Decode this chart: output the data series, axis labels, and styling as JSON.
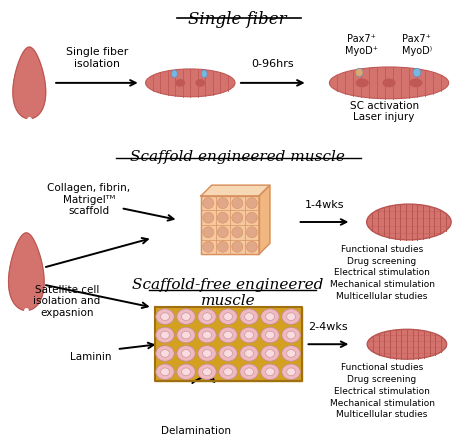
{
  "bg": "#ffffff",
  "muscle_red": "#d4726e",
  "muscle_dark_red": "#b85550",
  "fiber_stripe": "#c05855",
  "scaffold_face": "#f5c8a0",
  "scaffold_top": "#f7d8b5",
  "scaffold_side": "#f0b880",
  "scaffold_border": "#d89060",
  "scaffold_cell": "#e0a888",
  "scaffold_free_bg": "#d4a020",
  "scaffold_free_cell": "#f0b8c0",
  "scaffold_free_inner": "#f8dce0",
  "bump_blue": "#78b8e0",
  "bump_orange": "#e0a870",
  "nucleus": "#c05855",
  "title1": "Single fiber",
  "title2": "Scaffold engineered muscle",
  "title3": "Scaffold-free engineered\nmuscle",
  "t_single_fiber_iso": "Single fiber\nisolation",
  "t_096": "0-96hrs",
  "t_pax7pos": "Pax7⁺\nMyoD⁺",
  "t_pax7neg": "Pax7⁺\nMyoD⁾",
  "t_sc": "SC activation\nLaser injury",
  "t_collagen": "Collagen, fibrin,\nMatrigelᵀᴹ\nscaffold",
  "t_14wks": "1-4wks",
  "t_satellite": "Satellite cell\nisolation and\nexpasnion",
  "t_laminin": "Laminin",
  "t_delamination": "Delamination",
  "t_24wks": "2-4wks",
  "t_func": "Functional studies\nDrug screening\nElectrical stimulation\nMechanical stimulation\nMulticellular studies"
}
